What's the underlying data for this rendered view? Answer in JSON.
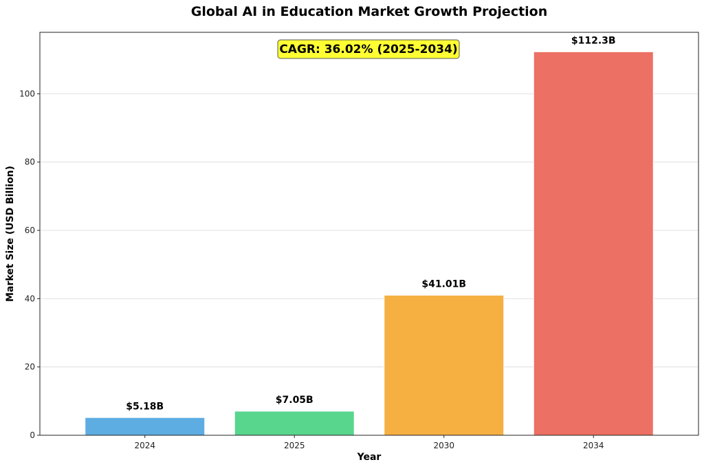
{
  "chart_data": {
    "type": "bar",
    "title": "Global AI in Education Market Growth Projection",
    "xlabel": "Year",
    "ylabel": "Market Size (USD Billion)",
    "categories": [
      "2024",
      "2025",
      "2030",
      "2034"
    ],
    "values": [
      5.18,
      7.05,
      41.01,
      112.3
    ],
    "value_labels": [
      "$5.18B",
      "$7.05B",
      "$41.01B",
      "$112.3B"
    ],
    "colors": [
      "#5DADE2",
      "#58D68D",
      "#F5B041",
      "#EC7063"
    ],
    "ylim": [
      0,
      118
    ],
    "yticks": [
      0,
      20,
      40,
      60,
      80,
      100
    ],
    "grid": "horizontal",
    "annotation": {
      "text": "CAGR: 36.02% (2025-2034)",
      "background": "#FFFF33"
    }
  }
}
